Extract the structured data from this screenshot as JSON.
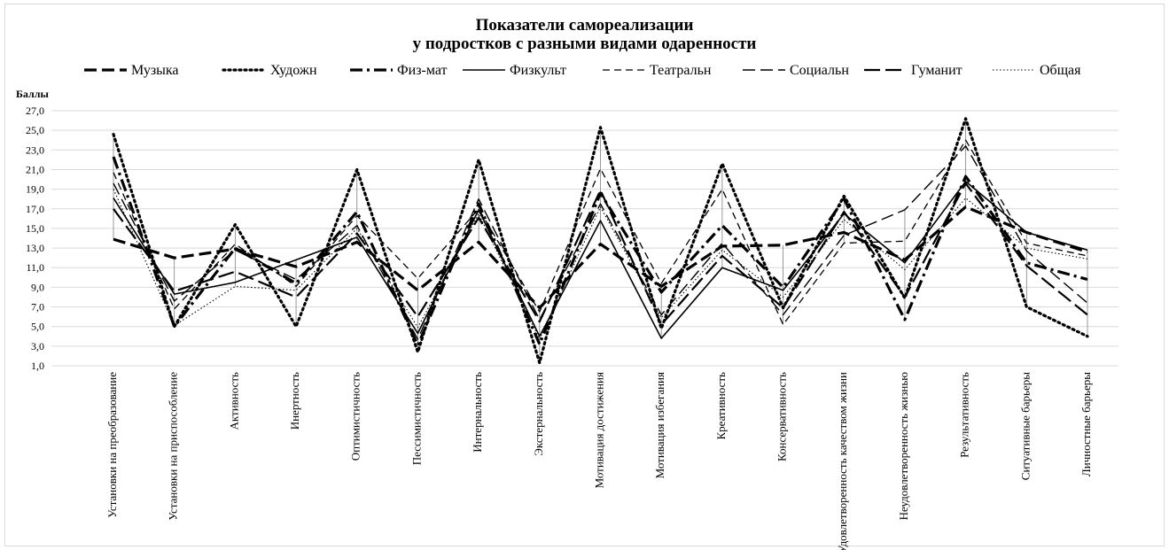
{
  "chart_data": {
    "type": "line",
    "title_line1": "Показатели самореализации",
    "title_line2": "у подростков с разными видами одаренности",
    "ylabel": "Баллы",
    "ylim": [
      1,
      27
    ],
    "yticks": [
      "1,0",
      "3,0",
      "5,0",
      "7,0",
      "9,0",
      "11,0",
      "13,0",
      "15,0",
      "17,0",
      "19,0",
      "21,0",
      "23,0",
      "25,0",
      "27,0"
    ],
    "grid": true,
    "legend_position": "top",
    "categories": [
      "Установки на преобразование",
      "Установки на приспособление",
      "Активность",
      "Инертность",
      "Оптимистичность",
      "Пессимистичность",
      "Интернальность",
      "Экстернальность",
      "Мотивация достижения",
      "Мотивация избегания",
      "Креативность",
      "Консервативность",
      "Удовлетворенность качеством жизни",
      "Неудовлетворенность жизнью",
      "Результативность",
      "Ситуативные барьеры",
      "Личностные барьеры"
    ],
    "series": [
      {
        "name": "Музыка",
        "style": "longdash-thick",
        "values": [
          13.9,
          12.0,
          12.9,
          11.1,
          13.6,
          8.7,
          13.6,
          6.9,
          13.4,
          9.1,
          13.2,
          13.3,
          14.6,
          11.8,
          17.2,
          14.6,
          12.6
        ]
      },
      {
        "name": "Художн",
        "style": "dot-thick",
        "values": [
          24.6,
          5.0,
          15.4,
          5.0,
          21.0,
          2.4,
          22.0,
          1.3,
          25.3,
          4.8,
          21.6,
          6.9,
          18.3,
          7.9,
          26.2,
          7.0,
          4.0
        ]
      },
      {
        "name": "Физ-мат",
        "style": "dashdot-thick",
        "values": [
          22.3,
          5.0,
          13.0,
          9.4,
          16.7,
          3.1,
          17.5,
          3.2,
          18.6,
          8.5,
          15.3,
          9.0,
          18.0,
          5.7,
          20.3,
          11.5,
          9.8
        ]
      },
      {
        "name": "Физкульт",
        "style": "solid",
        "values": [
          18.1,
          8.3,
          9.5,
          11.8,
          14.1,
          4.3,
          16.9,
          4.0,
          15.8,
          3.8,
          11.0,
          8.7,
          16.5,
          11.5,
          19.8,
          14.6,
          12.8
        ]
      },
      {
        "name": "Театральн",
        "style": "dash",
        "values": [
          20.7,
          6.8,
          13.4,
          9.1,
          16.3,
          9.9,
          17.0,
          6.5,
          21.1,
          9.4,
          19.0,
          5.2,
          13.5,
          13.7,
          24.0,
          13.5,
          12.2
        ]
      },
      {
        "name": "Социальн",
        "style": "longdash",
        "values": [
          19.6,
          7.6,
          12.8,
          9.8,
          15.3,
          3.7,
          18.0,
          5.7,
          17.5,
          6.2,
          13.5,
          6.2,
          14.3,
          16.9,
          23.4,
          12.7,
          7.4
        ]
      },
      {
        "name": "Гуманит",
        "style": "longdash-medium",
        "values": [
          17.0,
          8.6,
          10.6,
          8.0,
          14.5,
          6.0,
          16.1,
          5.5,
          18.9,
          5.2,
          12.2,
          6.9,
          16.7,
          8.0,
          19.6,
          11.2,
          6.2
        ]
      },
      {
        "name": "Общая",
        "style": "dot-fine",
        "values": [
          19.0,
          5.1,
          9.1,
          8.7,
          15.0,
          4.9,
          16.5,
          3.7,
          17.2,
          5.9,
          12.8,
          8.0,
          15.9,
          10.8,
          18.1,
          13.0,
          11.9
        ]
      }
    ]
  }
}
